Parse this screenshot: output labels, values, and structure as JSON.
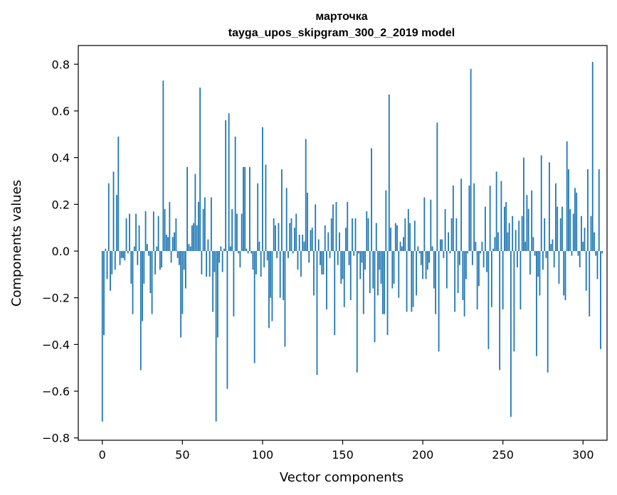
{
  "chart_data": {
    "type": "bar",
    "title": "марточка",
    "subtitle": "tayga_upos_skipgram_300_2_2019 model",
    "xlabel": "Vector components",
    "ylabel": "Components values",
    "xlim": [
      -15,
      315
    ],
    "ylim": [
      -0.8,
      0.8
    ],
    "grid": false,
    "color": "#1f77b4",
    "x_ticks": [
      0,
      50,
      100,
      150,
      200,
      250,
      300
    ],
    "x_tick_labels": [
      "0",
      "50",
      "100",
      "150",
      "200",
      "250",
      "300"
    ],
    "y_ticks": [
      -0.8,
      -0.6,
      -0.4,
      -0.2,
      0.0,
      0.2,
      0.4,
      0.6,
      0.8
    ],
    "y_tick_labels": [
      "−0.8",
      "−0.6",
      "−0.4",
      "−0.2",
      "0.0",
      "0.2",
      "0.4",
      "0.6",
      "0.8"
    ],
    "values": [
      -0.73,
      -0.36,
      0.01,
      -0.12,
      0.29,
      -0.17,
      -0.1,
      0.34,
      -0.08,
      0.24,
      0.49,
      -0.06,
      -0.03,
      -0.03,
      -0.04,
      0.14,
      -0.01,
      0.16,
      -0.14,
      -0.27,
      0.02,
      0.16,
      -0.06,
      0.11,
      -0.51,
      -0.3,
      -0.14,
      0.17,
      0.03,
      -0.02,
      -0.18,
      -0.27,
      0.17,
      -0.1,
      0.02,
      0.15,
      -0.08,
      -0.07,
      0.73,
      0.18,
      0.07,
      0.06,
      0.21,
      -0.05,
      0.06,
      0.08,
      0.14,
      -0.03,
      -0.06,
      -0.37,
      -0.27,
      -0.08,
      -0.16,
      0.36,
      0.03,
      0.02,
      0.11,
      0.12,
      0.33,
      0.11,
      0.21,
      0.7,
      -0.1,
      0.18,
      0.23,
      -0.11,
      0.05,
      -0.11,
      0.23,
      -0.26,
      -0.09,
      -0.73,
      -0.37,
      -0.05,
      0.02,
      -0.09,
      0.01,
      0.56,
      -0.59,
      0.59,
      0.02,
      0.18,
      -0.28,
      0.49,
      0.16,
      -0.01,
      -0.07,
      0.16,
      0.36,
      0.36,
      0.01,
      -0.01,
      0.36,
      -0.01,
      -0.08,
      -0.48,
      -0.1,
      0.29,
      0.04,
      -0.11,
      0.53,
      -0.07,
      0.37,
      -0.04,
      -0.33,
      -0.2,
      -0.3,
      0.14,
      0.11,
      -0.03,
      0.12,
      -0.2,
      0.35,
      -0.21,
      -0.41,
      0.27,
      -0.03,
      0.12,
      0.14,
      -0.01,
      0.1,
      0.16,
      -0.08,
      0.07,
      -0.11,
      0.07,
      0.04,
      0.48,
      0.25,
      -0.05,
      0.09,
      0.1,
      -0.19,
      0.2,
      -0.53,
      0.05,
      -0.06,
      -0.1,
      -0.1,
      0.11,
      -0.25,
      0.08,
      -0.03,
      0.14,
      0.2,
      -0.36,
      0.21,
      -0.06,
      0.08,
      -0.14,
      -0.12,
      -0.24,
      0.1,
      0.21,
      -0.06,
      -0.21,
      0.14,
      -0.02,
      0.14,
      -0.52,
      -0.01,
      -0.12,
      -0.05,
      -0.27,
      -0.08,
      0.17,
      0.14,
      -0.18,
      0.44,
      -0.16,
      -0.39,
      0.12,
      -0.19,
      -0.08,
      -0.14,
      -0.27,
      -0.27,
      0.26,
      -0.36,
      0.67,
      0.1,
      -0.16,
      -0.14,
      0.12,
      0.11,
      -0.2,
      0.04,
      0.02,
      0.06,
      0.14,
      -0.26,
      0.18,
      0.12,
      -0.26,
      -0.24,
      0.13,
      -0.19,
      0.02,
      -0.01,
      -0.06,
      -0.12,
      0.23,
      -0.12,
      -0.08,
      -0.05,
      0.22,
      0.02,
      -0.16,
      -0.27,
      0.55,
      -0.43,
      0.05,
      0.05,
      -0.03,
      0.18,
      -0.16,
      0.08,
      -0.01,
      0.14,
      0.28,
      -0.26,
      0.14,
      -0.18,
      -0.06,
      0.31,
      -0.21,
      -0.28,
      -0.12,
      -0.01,
      0.28,
      0.78,
      -0.06,
      0.29,
      0.04,
      -0.25,
      -0.15,
      -0.01,
      0.04,
      -0.07,
      0.19,
      -0.09,
      -0.42,
      0.28,
      -0.24,
      0.01,
      0.06,
      0.34,
      0.08,
      -0.51,
      0.3,
      -0.25,
      0.19,
      0.21,
      0.08,
      0.12,
      -0.71,
      0.15,
      -0.43,
      0.09,
      -0.07,
      0.13,
      -0.25,
      0.15,
      0.4,
      0.04,
      0.24,
      0.18,
      -0.1,
      0.26,
      0.06,
      -0.02,
      -0.45,
      -0.11,
      -0.19,
      0.41,
      -0.08,
      0.14,
      -0.03,
      -0.52,
      0.38,
      0.03,
      0.05,
      -0.07,
      0.29,
      0.19,
      -0.14,
      0.14,
      0.19,
      -0.19,
      -0.21,
      0.47,
      0.35,
      0.18,
      -0.02,
      0.16,
      0.27,
      0.25,
      -0.02,
      -0.07,
      0.15,
      0.04,
      0.1,
      -0.17,
      0.35,
      -0.28,
      0.15,
      0.81,
      0.08,
      -0.02,
      -0.12,
      0.35,
      -0.42,
      -0.01
    ]
  }
}
